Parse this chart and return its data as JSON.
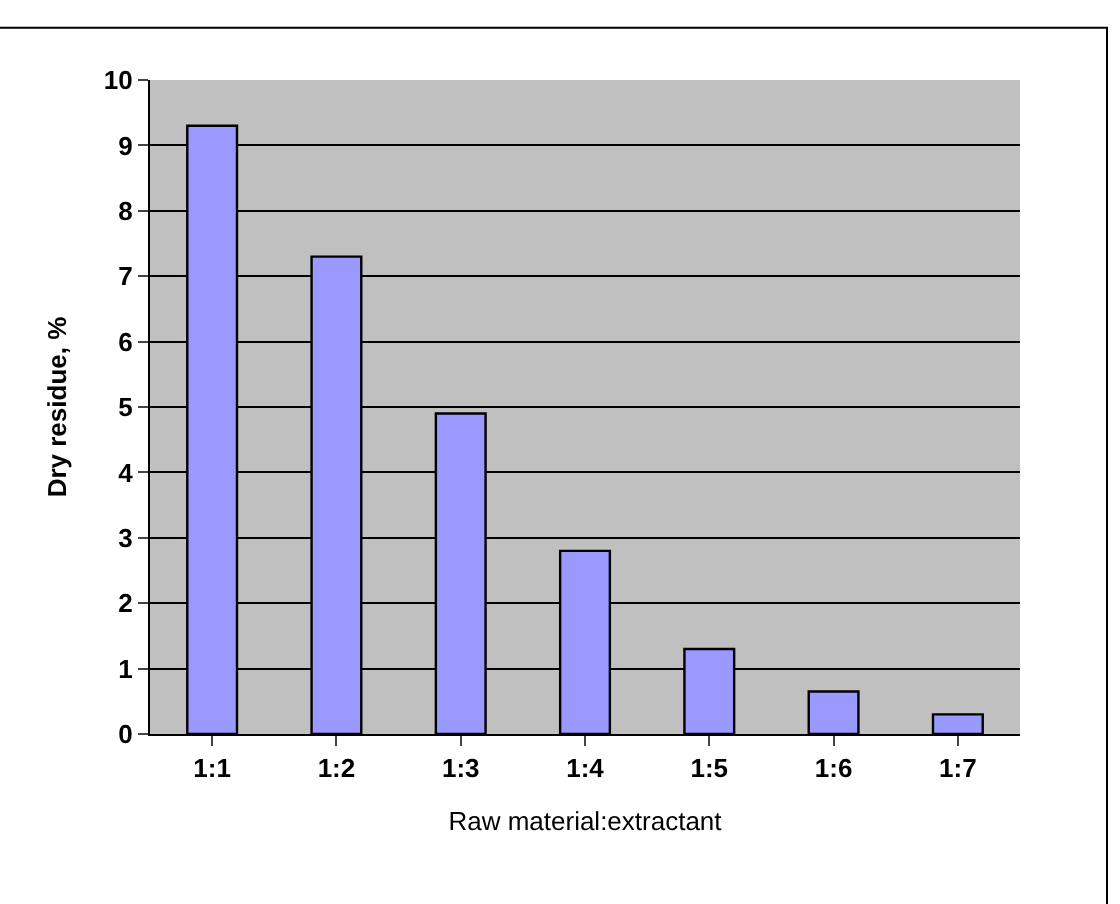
{
  "chart_data": {
    "type": "bar",
    "xlabel": "Raw material:extractant",
    "ylabel": "Dry residue, %",
    "categories": [
      "1:1",
      "1:2",
      "1:3",
      "1:4",
      "1:5",
      "1:6",
      "1:7"
    ],
    "values": [
      9.3,
      7.3,
      4.9,
      2.8,
      1.3,
      0.65,
      0.3
    ],
    "color": "#9999ff",
    "ylim": [
      0,
      10
    ],
    "yticks": [
      0,
      1,
      2,
      3,
      4,
      5,
      6,
      7,
      8,
      9,
      10
    ],
    "grid": "y",
    "legend": false
  }
}
